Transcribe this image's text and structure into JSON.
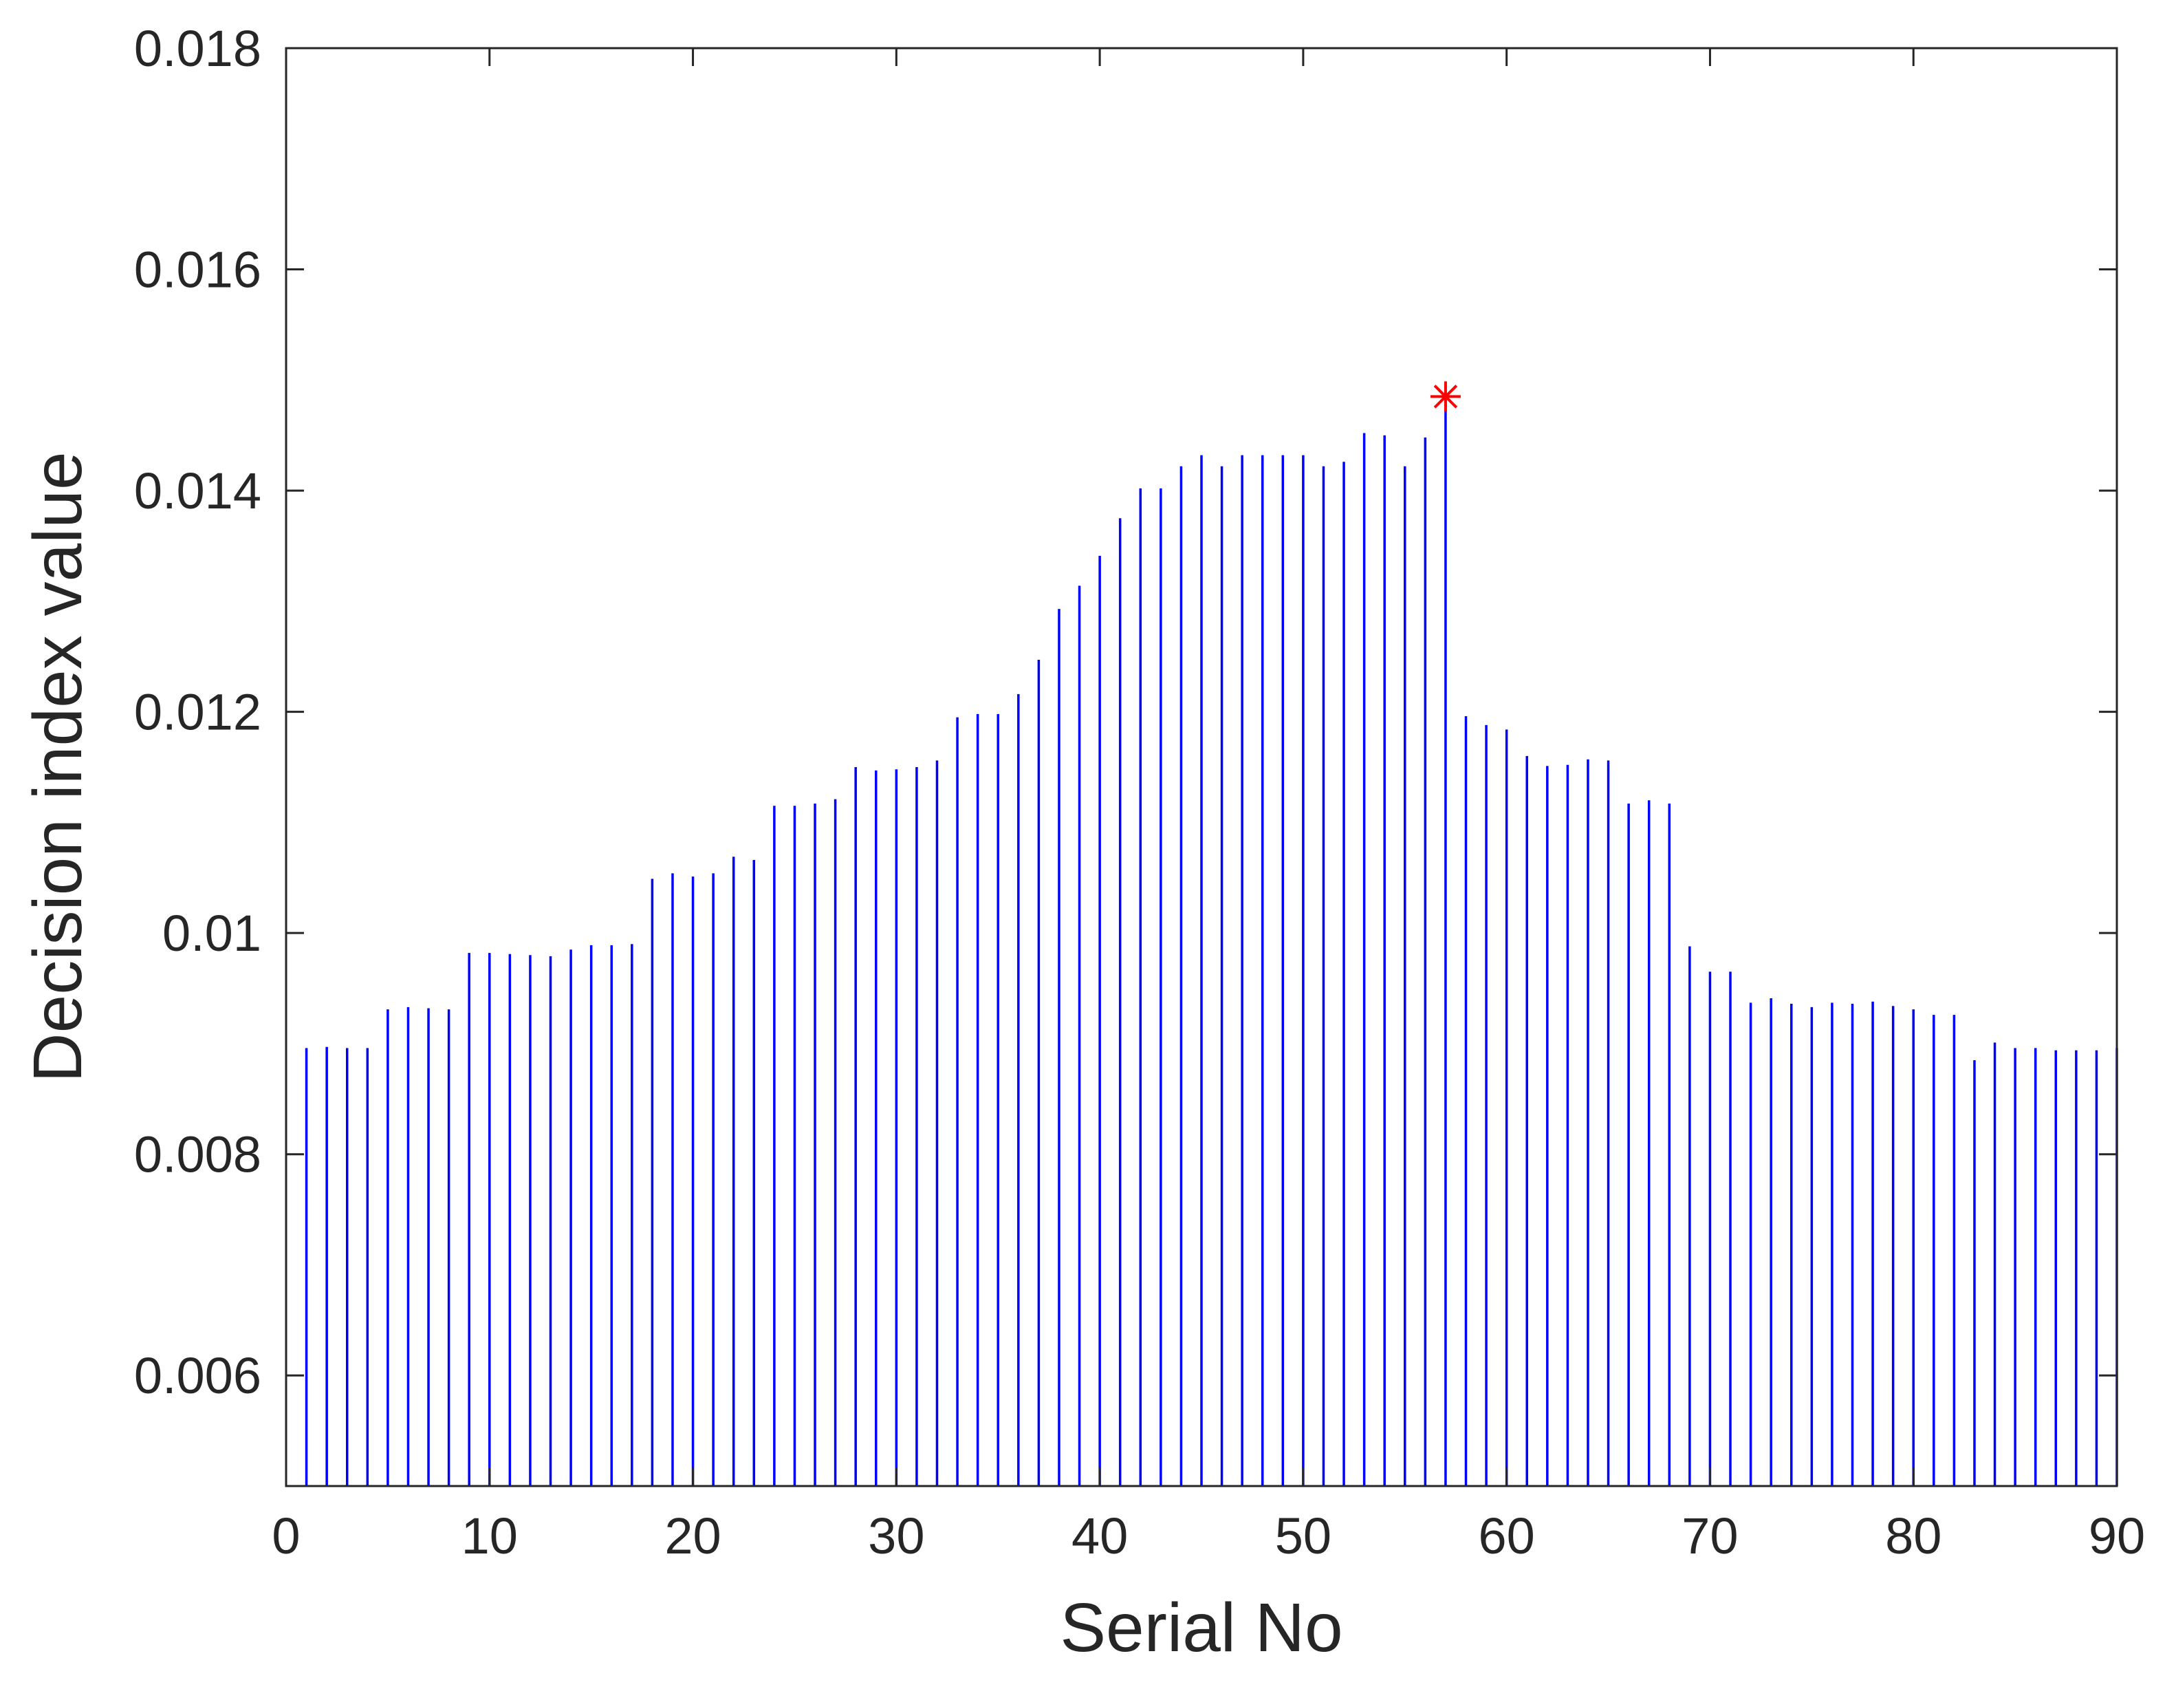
{
  "colors": {
    "stem": "#0000ff",
    "marker": "#ff0000",
    "axis": "#262626",
    "background": "#ffffff"
  },
  "chart_data": {
    "type": "stem",
    "title": "",
    "xlabel": "Serial No",
    "ylabel": "Decision index value",
    "xlim": [
      0,
      90
    ],
    "ylim": [
      0.005,
      0.018
    ],
    "grid": false,
    "box": true,
    "x_ticks": [
      0,
      10,
      20,
      30,
      40,
      50,
      60,
      70,
      80,
      90
    ],
    "x_tick_labels": [
      "0",
      "10",
      "20",
      "30",
      "40",
      "50",
      "60",
      "70",
      "80",
      "90"
    ],
    "y_ticks": [
      0.006,
      0.008,
      0.01,
      0.012,
      0.014,
      0.016,
      0.018
    ],
    "y_tick_labels": [
      "0.006",
      "0.008",
      "0.01",
      "0.012",
      "0.014",
      "0.016",
      "0.018"
    ],
    "x": [
      1,
      2,
      3,
      4,
      5,
      6,
      7,
      8,
      9,
      10,
      11,
      12,
      13,
      14,
      15,
      16,
      17,
      18,
      19,
      20,
      21,
      22,
      23,
      24,
      25,
      26,
      27,
      28,
      29,
      30,
      31,
      32,
      33,
      34,
      35,
      36,
      37,
      38,
      39,
      40,
      41,
      42,
      43,
      44,
      45,
      46,
      47,
      48,
      49,
      50,
      51,
      52,
      53,
      54,
      55,
      56,
      57,
      58,
      59,
      60,
      61,
      62,
      63,
      64,
      65,
      66,
      67,
      68,
      69,
      70,
      71,
      72,
      73,
      74,
      75,
      76,
      77,
      78,
      79,
      80,
      81,
      82,
      83,
      84,
      85,
      86,
      87,
      88,
      89,
      90
    ],
    "values": [
      0.00896,
      0.00897,
      0.00896,
      0.00896,
      0.00931,
      0.00933,
      0.00932,
      0.00931,
      0.00982,
      0.00982,
      0.00981,
      0.0098,
      0.00979,
      0.00985,
      0.00989,
      0.00989,
      0.0099,
      0.01049,
      0.01054,
      0.01051,
      0.01054,
      0.01069,
      0.01066,
      0.01115,
      0.01115,
      0.01117,
      0.01121,
      0.0115,
      0.01147,
      0.01148,
      0.0115,
      0.01156,
      0.01195,
      0.01198,
      0.01198,
      0.01216,
      0.01247,
      0.01293,
      0.01314,
      0.01341,
      0.01375,
      0.01402,
      0.01402,
      0.01422,
      0.01432,
      0.01422,
      0.01432,
      0.01432,
      0.01432,
      0.01432,
      0.01422,
      0.01426,
      0.01452,
      0.0145,
      0.01422,
      0.01448,
      0.01485,
      0.01196,
      0.01188,
      0.01184,
      0.0116,
      0.01151,
      0.01152,
      0.01157,
      0.01156,
      0.01117,
      0.0112,
      0.01117,
      0.00988,
      0.00965,
      0.00965,
      0.00937,
      0.00941,
      0.00936,
      0.00933,
      0.00937,
      0.00936,
      0.00938,
      0.00934,
      0.00931,
      0.00926,
      0.00926,
      0.00885,
      0.00901,
      0.00896,
      0.00896,
      0.00894,
      0.00894,
      0.00894,
      0.00896
    ],
    "highlight": {
      "x": 57,
      "y": 0.01485,
      "marker": "asterisk"
    }
  }
}
